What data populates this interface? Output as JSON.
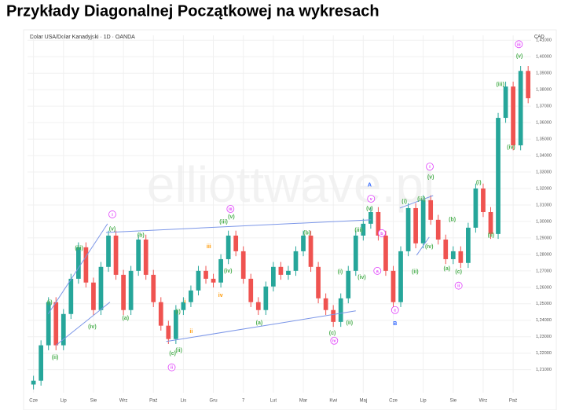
{
  "chart_data": {
    "type": "candlestick",
    "title": "Przykłady Diagonalnej Początkowej na wykresach",
    "subtitle": "Dolar USA/Dolar Kanadyjski · 1D · OANDA",
    "watermark": "elliottwave.pl",
    "currency": "CAD",
    "up_color": "#26a69a",
    "down_color": "#ef5350",
    "line_color": "#7b96e8",
    "grid": true,
    "xlim": [
      -0.2,
      16.6
    ],
    "xticks": [
      {
        "value": 0,
        "label": "Cze"
      },
      {
        "value": 1,
        "label": "Lip"
      },
      {
        "value": 2,
        "label": "Sie"
      },
      {
        "value": 3,
        "label": "Wrz"
      },
      {
        "value": 4,
        "label": "Paź"
      },
      {
        "value": 5,
        "label": "Lis"
      },
      {
        "value": 6,
        "label": "Gru"
      },
      7,
      {
        "value": 8,
        "label": "Lut"
      },
      {
        "value": 9,
        "label": "Mar"
      },
      {
        "value": 10,
        "label": "Kwi"
      },
      {
        "value": 11,
        "label": "Maj"
      },
      {
        "value": 12,
        "label": "Cze"
      },
      {
        "value": 13,
        "label": "Lip"
      },
      {
        "value": 14,
        "label": "Sie"
      },
      {
        "value": 15,
        "label": "Wrz"
      },
      {
        "value": 16,
        "label": "Paź"
      }
    ],
    "ylim": [
      1.196,
      1.413
    ],
    "yticks": [
      {
        "value": 1.21,
        "label": "1,21000"
      },
      {
        "value": 1.22,
        "label": "1,22000"
      },
      {
        "value": 1.23,
        "label": "1,23000"
      },
      {
        "value": 1.24,
        "label": "1,24000"
      },
      {
        "value": 1.25,
        "label": "1,25000"
      },
      {
        "value": 1.26,
        "label": "1,26000"
      },
      {
        "value": 1.27,
        "label": "1,27000"
      },
      {
        "value": 1.28,
        "label": "1,28000"
      },
      {
        "value": 1.29,
        "label": "1,29000"
      },
      {
        "value": 1.3,
        "label": "1,30000"
      },
      {
        "value": 1.31,
        "label": "1,31000"
      },
      {
        "value": 1.32,
        "label": "1,32000"
      },
      {
        "value": 1.33,
        "label": "1,33000"
      },
      {
        "value": 1.34,
        "label": "1,34000"
      },
      {
        "value": 1.35,
        "label": "1,35000"
      },
      {
        "value": 1.36,
        "label": "1,36000"
      },
      {
        "value": 1.37,
        "label": "1,37000"
      },
      {
        "value": 1.38,
        "label": "1,38000"
      },
      {
        "value": 1.39,
        "label": "1,39000"
      },
      {
        "value": 1.4,
        "label": "1,40000"
      },
      {
        "value": 1.41,
        "label": "1,41000"
      }
    ],
    "x": [
      0,
      0.25,
      0.5,
      0.75,
      1,
      1.25,
      1.5,
      1.75,
      2,
      2.25,
      2.5,
      2.75,
      3,
      3.25,
      3.5,
      3.75,
      4,
      4.25,
      4.5,
      4.75,
      5,
      5.25,
      5.5,
      5.75,
      6,
      6.25,
      6.5,
      6.75,
      7,
      7.25,
      7.5,
      7.75,
      8,
      8.25,
      8.5,
      8.75,
      9,
      9.25,
      9.5,
      9.75,
      10,
      10.25,
      10.5,
      10.75,
      11,
      11.25,
      11.5,
      11.75,
      12,
      12.25,
      12.5,
      12.75,
      13,
      13.25,
      13.5,
      13.75,
      14,
      14.25,
      14.5,
      14.75,
      15,
      15.25,
      15.5,
      15.75,
      16,
      16.25,
      16.5
    ],
    "ohlc": [
      [
        1.201,
        1.2063,
        1.198,
        1.2033
      ],
      [
        1.2033,
        1.2278,
        1.2003,
        1.2248
      ],
      [
        1.2248,
        1.254,
        1.2218,
        1.251
      ],
      [
        1.251,
        1.254,
        1.2218,
        1.2248
      ],
      [
        1.2248,
        1.2468,
        1.2218,
        1.2438
      ],
      [
        1.2438,
        1.2682,
        1.2408,
        1.2652
      ],
      [
        1.2652,
        1.2873,
        1.2622,
        1.2843
      ],
      [
        1.2843,
        1.2873,
        1.2599,
        1.2629
      ],
      [
        1.2629,
        1.2659,
        1.2432,
        1.2462
      ],
      [
        1.2462,
        1.2754,
        1.2432,
        1.2724
      ],
      [
        1.2724,
        1.2944,
        1.2694,
        1.2914
      ],
      [
        1.2914,
        1.2944,
        1.2646,
        1.2676
      ],
      [
        1.2676,
        1.2706,
        1.2432,
        1.2462
      ],
      [
        1.2462,
        1.273,
        1.2432,
        1.27
      ],
      [
        1.27,
        1.292,
        1.267,
        1.289
      ],
      [
        1.289,
        1.292,
        1.2646,
        1.2676
      ],
      [
        1.2676,
        1.2706,
        1.248,
        1.251
      ],
      [
        1.251,
        1.254,
        1.2337,
        1.2367
      ],
      [
        1.2367,
        1.2397,
        1.2256,
        1.2286
      ],
      [
        1.2286,
        1.2492,
        1.2256,
        1.2462
      ],
      [
        1.2462,
        1.254,
        1.2432,
        1.251
      ],
      [
        1.251,
        1.2611,
        1.248,
        1.2581
      ],
      [
        1.2581,
        1.273,
        1.2551,
        1.27
      ],
      [
        1.27,
        1.273,
        1.2622,
        1.2652
      ],
      [
        1.2652,
        1.2682,
        1.2599,
        1.2629
      ],
      [
        1.2629,
        1.2801,
        1.2599,
        1.2771
      ],
      [
        1.2771,
        1.2944,
        1.2741,
        1.2914
      ],
      [
        1.2914,
        1.2944,
        1.2789,
        1.2819
      ],
      [
        1.2819,
        1.2849,
        1.2622,
        1.2652
      ],
      [
        1.2652,
        1.2682,
        1.248,
        1.251
      ],
      [
        1.251,
        1.254,
        1.2432,
        1.2462
      ],
      [
        1.2462,
        1.2635,
        1.2432,
        1.2605
      ],
      [
        1.2605,
        1.2754,
        1.2575,
        1.2724
      ],
      [
        1.2724,
        1.2754,
        1.2646,
        1.2676
      ],
      [
        1.2676,
        1.273,
        1.2646,
        1.27
      ],
      [
        1.27,
        1.2849,
        1.267,
        1.2819
      ],
      [
        1.2819,
        1.2944,
        1.2789,
        1.2914
      ],
      [
        1.2914,
        1.2944,
        1.2694,
        1.2724
      ],
      [
        1.2724,
        1.2754,
        1.2503,
        1.2533
      ],
      [
        1.2533,
        1.2563,
        1.2432,
        1.2462
      ],
      [
        1.2462,
        1.2492,
        1.236,
        1.239
      ],
      [
        1.239,
        1.2563,
        1.236,
        1.2533
      ],
      [
        1.2533,
        1.273,
        1.2503,
        1.27
      ],
      [
        1.27,
        1.2944,
        1.267,
        1.2914
      ],
      [
        1.2914,
        1.3016,
        1.2884,
        1.2986
      ],
      [
        1.2986,
        1.3087,
        1.2956,
        1.3057
      ],
      [
        1.3057,
        1.3087,
        1.2884,
        1.2914
      ],
      [
        1.2914,
        1.2944,
        1.267,
        1.27
      ],
      [
        1.27,
        1.273,
        1.248,
        1.251
      ],
      [
        1.251,
        1.2849,
        1.248,
        1.2819
      ],
      [
        1.2819,
        1.3111,
        1.2789,
        1.3081
      ],
      [
        1.3081,
        1.3111,
        1.2837,
        1.2867
      ],
      [
        1.2867,
        1.3159,
        1.2837,
        1.3129
      ],
      [
        1.3129,
        1.3159,
        1.298,
        1.301
      ],
      [
        1.301,
        1.304,
        1.286,
        1.289
      ],
      [
        1.289,
        1.292,
        1.2741,
        1.2771
      ],
      [
        1.2771,
        1.2849,
        1.2741,
        1.2819
      ],
      [
        1.2819,
        1.2849,
        1.2718,
        1.2748
      ],
      [
        1.2748,
        1.2992,
        1.2718,
        1.2962
      ],
      [
        1.2962,
        1.323,
        1.2932,
        1.32
      ],
      [
        1.32,
        1.323,
        1.3027,
        1.3057
      ],
      [
        1.3057,
        1.3087,
        1.2894,
        1.2924
      ],
      [
        1.2924,
        1.3659,
        1.2894,
        1.3629
      ],
      [
        1.3629,
        1.3849,
        1.3599,
        1.3819
      ],
      [
        1.3819,
        1.3849,
        1.3432,
        1.3462
      ],
      [
        1.3462,
        1.3944,
        1.3432,
        1.3914
      ],
      [
        1.3914,
        1.3944,
        1.3718,
        1.3748
      ]
    ],
    "trend_lines": [
      [
        0.49,
        1.2438,
        2.47,
        1.2986
      ],
      [
        0.75,
        1.2248,
        2.55,
        1.251
      ],
      [
        2.42,
        1.2933,
        11.26,
        1.301
      ],
      [
        4.43,
        1.2271,
        10.75,
        1.2457
      ],
      [
        12.22,
        1.3081,
        13.33,
        1.3157
      ],
      [
        12.78,
        1.2795,
        13.2,
        1.2905
      ]
    ],
    "annotations": [
      {
        "text": "(i)",
        "x": 0.54,
        "y": 1.251,
        "color": "#4caf50"
      },
      {
        "text": "(ii)",
        "x": 0.72,
        "y": 1.2176,
        "color": "#4caf50"
      },
      {
        "text": "(iii)",
        "x": 1.52,
        "y": 1.2838,
        "color": "#4caf50"
      },
      {
        "text": "(iv)",
        "x": 1.96,
        "y": 1.2362,
        "color": "#4caf50"
      },
      {
        "text": "(v)",
        "x": 2.63,
        "y": 1.2957,
        "color": "#4caf50"
      },
      {
        "text": "(a)",
        "x": 3.07,
        "y": 1.2414,
        "color": "#4caf50"
      },
      {
        "text": "(b)",
        "x": 3.58,
        "y": 1.2919,
        "color": "#4caf50"
      },
      {
        "text": "(c)",
        "x": 4.64,
        "y": 1.22,
        "color": "#4caf50"
      },
      {
        "text": "(ii)",
        "x": 4.85,
        "y": 1.2219,
        "color": "#4caf50"
      },
      {
        "text": "(i)",
        "x": 4.82,
        "y": 1.2452,
        "color": "#4caf50"
      },
      {
        "text": "(iii)",
        "x": 6.34,
        "y": 1.3,
        "color": "#4caf50"
      },
      {
        "text": "(v)",
        "x": 6.6,
        "y": 1.3029,
        "color": "#4caf50"
      },
      {
        "text": "(iv)",
        "x": 6.49,
        "y": 1.27,
        "color": "#4caf50"
      },
      {
        "text": "(a)",
        "x": 7.53,
        "y": 1.2386,
        "color": "#4caf50"
      },
      {
        "text": "(b)",
        "x": 9.12,
        "y": 1.2933,
        "color": "#4caf50"
      },
      {
        "text": "(c)",
        "x": 9.97,
        "y": 1.2324,
        "color": "#4caf50"
      },
      {
        "text": "(ii)",
        "x": 10.54,
        "y": 1.2386,
        "color": "#4caf50"
      },
      {
        "text": "(i)",
        "x": 10.23,
        "y": 1.2695,
        "color": "#4caf50"
      },
      {
        "text": "(iii)",
        "x": 10.85,
        "y": 1.2948,
        "color": "#4caf50"
      },
      {
        "text": "(iv)",
        "x": 10.95,
        "y": 1.2662,
        "color": "#4caf50"
      },
      {
        "text": "(v)",
        "x": 11.21,
        "y": 1.3081,
        "color": "#4caf50"
      },
      {
        "text": "(i)",
        "x": 12.37,
        "y": 1.3124,
        "color": "#4caf50"
      },
      {
        "text": "(iii)",
        "x": 12.94,
        "y": 1.3138,
        "color": "#4caf50"
      },
      {
        "text": "(ii)",
        "x": 12.73,
        "y": 1.2695,
        "color": "#4caf50"
      },
      {
        "text": "(iv)",
        "x": 13.2,
        "y": 1.2848,
        "color": "#4caf50"
      },
      {
        "text": "(v)",
        "x": 13.25,
        "y": 1.3271,
        "color": "#4caf50"
      },
      {
        "text": "(a)",
        "x": 13.79,
        "y": 1.2714,
        "color": "#4caf50"
      },
      {
        "text": "(b)",
        "x": 13.97,
        "y": 1.3014,
        "color": "#4caf50"
      },
      {
        "text": "(c)",
        "x": 14.18,
        "y": 1.2695,
        "color": "#4caf50"
      },
      {
        "text": "(i)",
        "x": 14.85,
        "y": 1.3238,
        "color": "#4caf50"
      },
      {
        "text": "(ii)",
        "x": 15.26,
        "y": 1.2919,
        "color": "#4caf50"
      },
      {
        "text": "(iii)",
        "x": 15.57,
        "y": 1.3833,
        "color": "#4caf50"
      },
      {
        "text": "(iv)",
        "x": 15.93,
        "y": 1.3452,
        "color": "#4caf50"
      },
      {
        "text": "(v)",
        "x": 16.21,
        "y": 1.4005,
        "color": "#4caf50"
      },
      {
        "text": "iii",
        "x": 5.85,
        "y": 1.2848,
        "color": "#ff9800"
      },
      {
        "text": "iv",
        "x": 6.24,
        "y": 1.2552,
        "color": "#ff9800"
      },
      {
        "text": "i",
        "x": 5.05,
        "y": 1.2514,
        "color": "#ff9800"
      },
      {
        "text": "ii",
        "x": 5.26,
        "y": 1.2333,
        "color": "#ff9800"
      },
      {
        "text": "i",
        "x": 2.63,
        "y": 1.3043,
        "color": "#e040fb",
        "circled": true
      },
      {
        "text": "ii",
        "x": 4.61,
        "y": 1.2114,
        "color": "#e040fb",
        "circled": true
      },
      {
        "text": "iii",
        "x": 6.57,
        "y": 1.3076,
        "color": "#e040fb",
        "circled": true
      },
      {
        "text": "iv",
        "x": 10.03,
        "y": 1.2276,
        "color": "#e040fb",
        "circled": true
      },
      {
        "text": "v",
        "x": 11.26,
        "y": 1.3138,
        "color": "#e040fb",
        "circled": true
      },
      {
        "text": "b",
        "x": 11.62,
        "y": 1.2929,
        "color": "#e040fb",
        "circled": true
      },
      {
        "text": "a",
        "x": 11.47,
        "y": 1.27,
        "color": "#e040fb",
        "circled": true
      },
      {
        "text": "c",
        "x": 12.06,
        "y": 1.2462,
        "color": "#e040fb",
        "circled": true
      },
      {
        "text": "i",
        "x": 13.22,
        "y": 1.3333,
        "color": "#e040fb",
        "circled": true
      },
      {
        "text": "ii",
        "x": 14.18,
        "y": 1.261,
        "color": "#e040fb",
        "circled": true
      },
      {
        "text": "iii",
        "x": 16.19,
        "y": 1.4076,
        "color": "#e040fb",
        "circled": true
      },
      {
        "text": "A",
        "x": 11.21,
        "y": 1.3224,
        "color": "#2962ff"
      },
      {
        "text": "B",
        "x": 12.06,
        "y": 1.2381,
        "color": "#2962ff"
      }
    ]
  }
}
